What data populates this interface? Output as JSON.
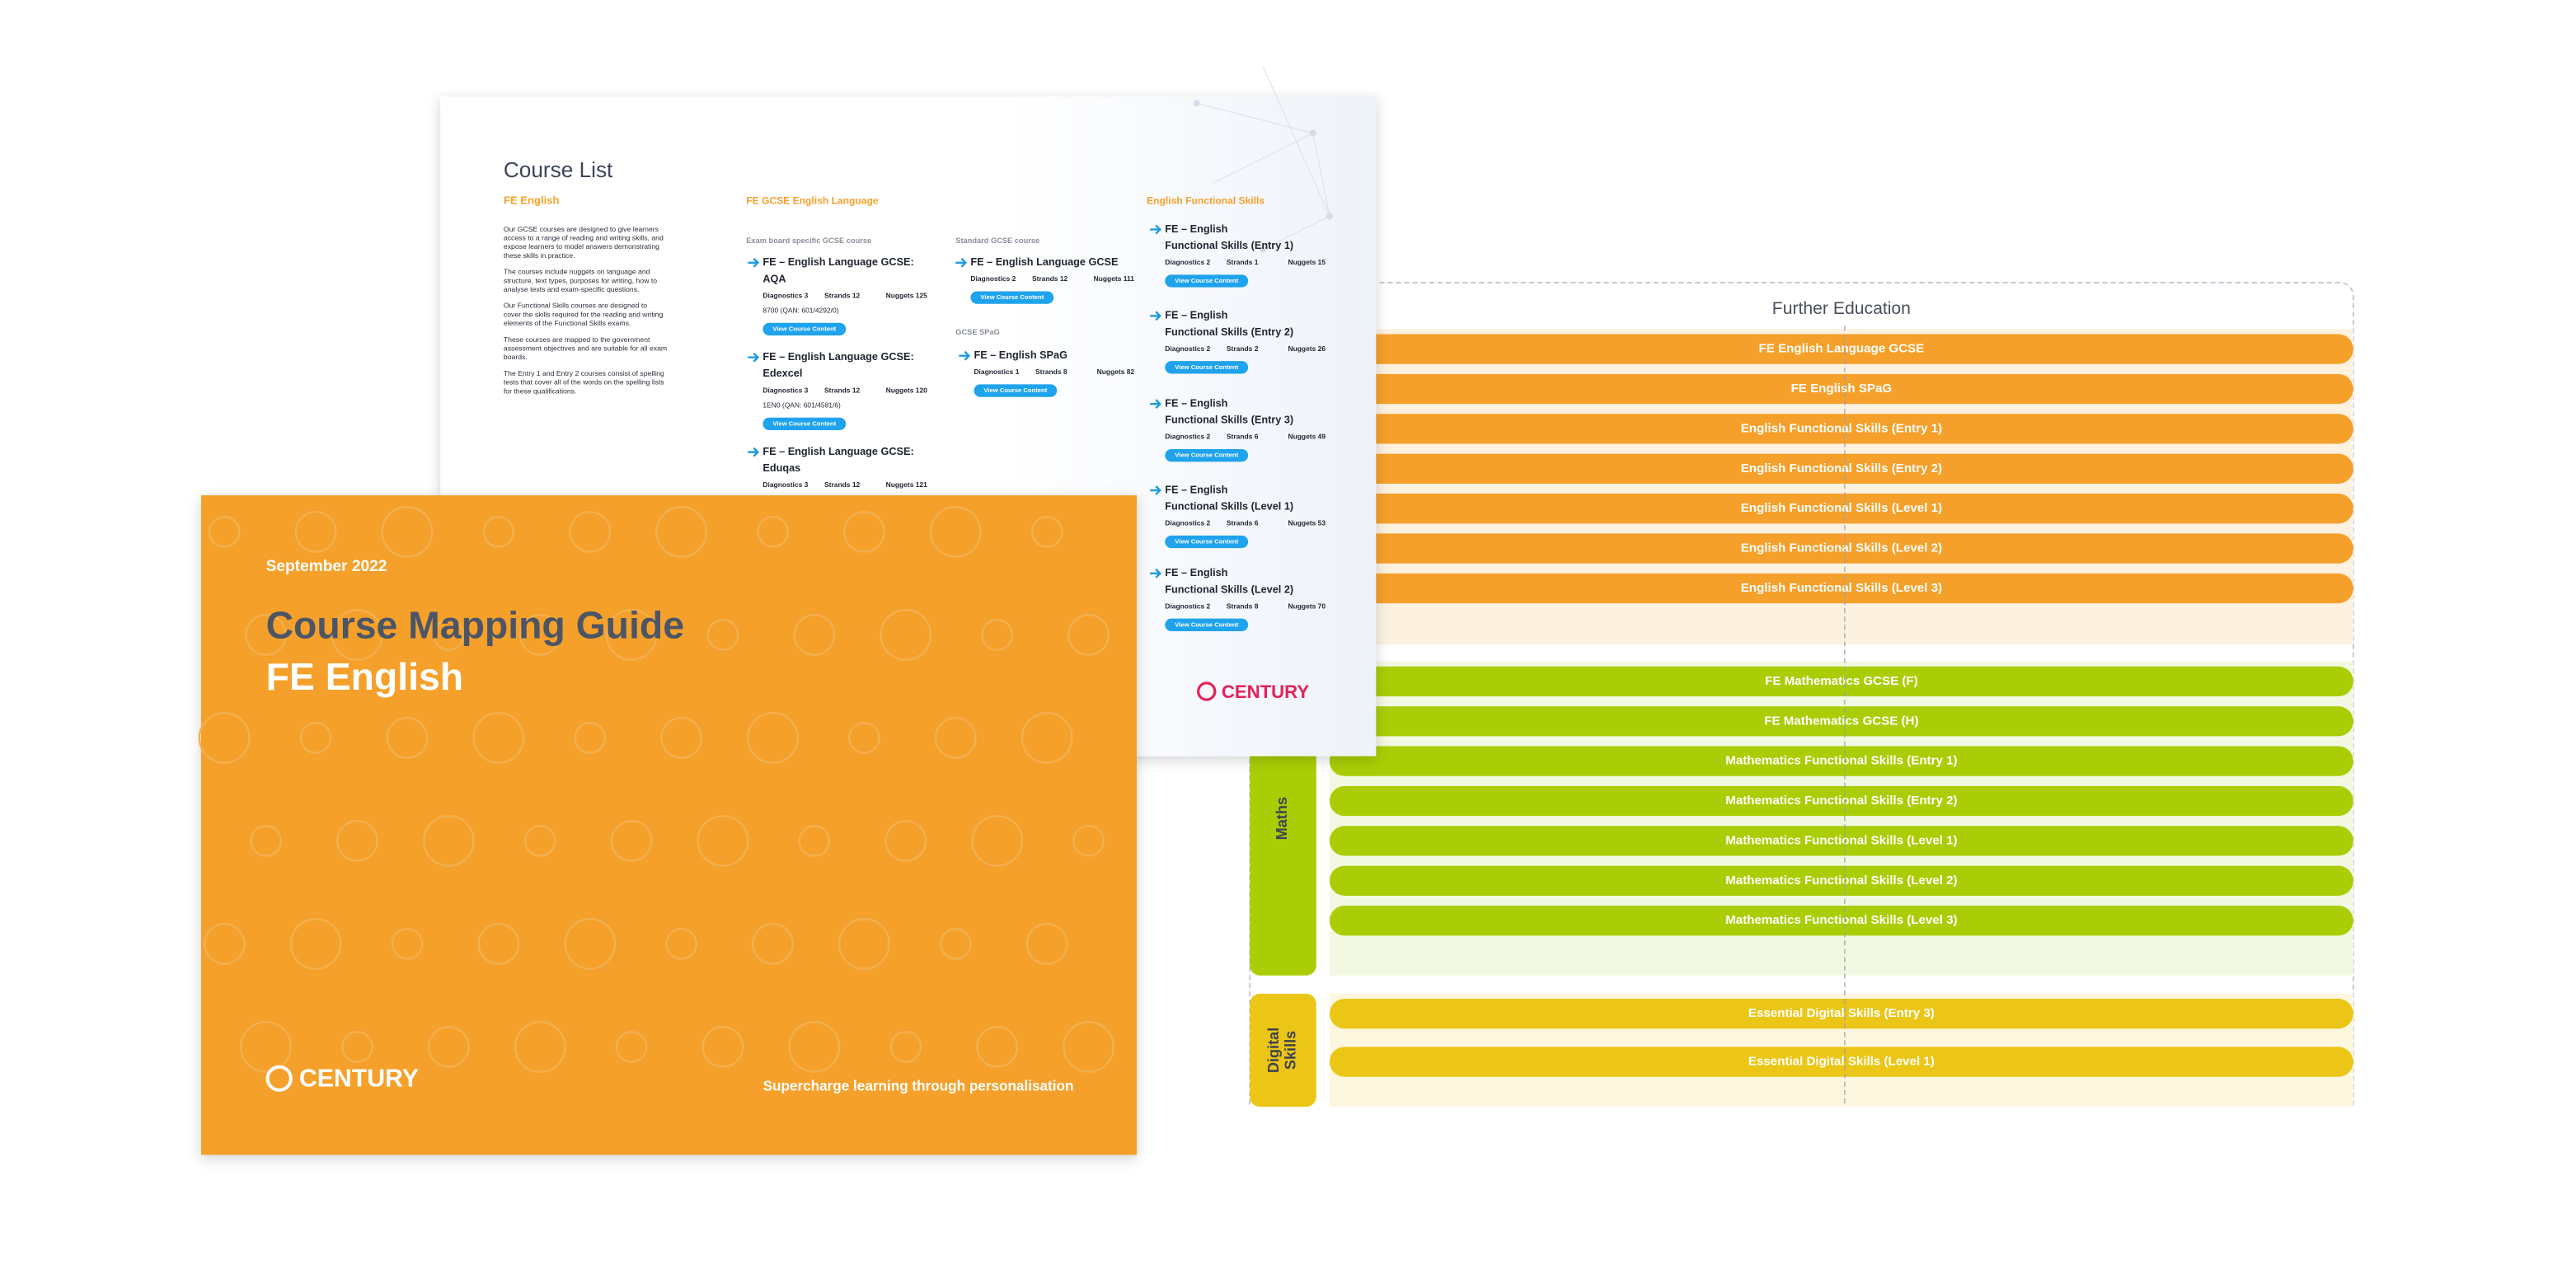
{
  "mapping": {
    "header": "Further Education",
    "groups": [
      {
        "courses": [
          "FE English Language GCSE",
          "FE English SPaG",
          "English Functional Skills (Entry 1)",
          "English Functional Skills (Entry 2)",
          "English Functional Skills (Level 1)",
          "English Functional Skills (Level 2)",
          "English Functional Skills (Level 3)"
        ]
      },
      {
        "label": [
          "Maths"
        ],
        "courses": [
          "FE Mathematics GCSE (F)",
          "FE Mathematics GCSE (H)",
          "Mathematics Functional Skills (Entry 1)",
          "Mathematics Functional Skills (Entry 2)",
          "Mathematics Functional Skills (Level 1)",
          "Mathematics Functional Skills (Level 2)",
          "Mathematics Functional Skills (Level 3)"
        ]
      },
      {
        "label": [
          "Digital",
          "Skills"
        ],
        "courses": [
          "Essential Digital Skills (Entry 3)",
          "Essential Digital Skills (Level 1)"
        ]
      }
    ]
  },
  "course_list": {
    "title": "Course List",
    "section": "FE English",
    "paragraphs": [
      [
        "Our GCSE courses are designed to give learners",
        "access to a range of reading and writing skills, and",
        "expose learners to model answers demonstrating",
        "these skills in practice."
      ],
      [
        "The courses include nuggets on language and",
        "structure, text types, purposes for writing, how to",
        "analyse texts and exam-specific questions."
      ],
      [
        "Our Functional Skills courses are designed to",
        "cover the skills required for the reading and writing",
        "elements of the Functional Skills exams."
      ],
      [
        "These courses are mapped to the government",
        "assessment objectives and are suitable for all exam",
        "boards."
      ],
      [
        "The Entry 1 and Entry 2 courses consist of spelling",
        "tests that cover all of the words on the spelling lists",
        "for these qualifications."
      ]
    ],
    "gcse": {
      "heading": "FE GCSE English Language",
      "label": "Exam board specific GCSE course",
      "courses": [
        {
          "title": [
            "FE – English Language GCSE:",
            "AQA"
          ],
          "stats": [
            "Diagnostics 3",
            "Strands 12",
            "Nuggets 125"
          ],
          "code": "8700 (QAN: 601/4292/0)",
          "button": "View Course Content"
        },
        {
          "title": [
            "FE – English Language GCSE:",
            "Edexcel"
          ],
          "stats": [
            "Diagnostics 3",
            "Strands 12",
            "Nuggets 120"
          ],
          "code": "1EN0 (QAN: 601/4581/6)",
          "button": "View Course Content"
        },
        {
          "title": [
            "FE – English Language GCSE:",
            "Eduqas"
          ],
          "stats": [
            "Diagnostics 3",
            "Strands 12",
            "Nuggets 121"
          ]
        }
      ]
    },
    "standard": {
      "label": "Standard GCSE course",
      "course": {
        "title": [
          "FE – English Language GCSE"
        ],
        "stats": [
          "Diagnostics 2",
          "Strands 12",
          "Nuggets 111"
        ],
        "button": "View Course Content"
      }
    },
    "spag": {
      "label": "GCSE SPaG",
      "course": {
        "title": [
          "FE – English SPaG"
        ],
        "stats": [
          "Diagnostics 1",
          "Strands 8",
          "Nuggets 82"
        ],
        "button": "View Course Content"
      }
    },
    "functional": {
      "heading": "English Functional Skills",
      "courses": [
        {
          "title": [
            "FE – English",
            "Functional Skills (Entry 1)"
          ],
          "stats": [
            "Diagnostics 2",
            "Strands 1",
            "Nuggets 15"
          ],
          "button": "View Course Content"
        },
        {
          "title": [
            "FE – English",
            "Functional Skills (Entry 2)"
          ],
          "stats": [
            "Diagnostics 2",
            "Strands 2",
            "Nuggets 26"
          ],
          "button": "View Course Content"
        },
        {
          "title": [
            "FE – English",
            "Functional Skills (Entry 3)"
          ],
          "stats": [
            "Diagnostics 2",
            "Strands 6",
            "Nuggets 49"
          ],
          "button": "View Course Content"
        },
        {
          "title": [
            "FE – English",
            "Functional Skills (Level 1)"
          ],
          "stats": [
            "Diagnostics 2",
            "Strands 6",
            "Nuggets 53"
          ],
          "button": "View Course Content"
        },
        {
          "title": [
            "FE – English",
            "Functional Skills (Level 2)"
          ],
          "stats": [
            "Diagnostics 2",
            "Strands 8",
            "Nuggets 70"
          ],
          "button": "View Course Content"
        }
      ]
    },
    "logo": "CENTURY"
  },
  "cover": {
    "date": "September 2022",
    "title": "Course Mapping Guide",
    "subtitle": "FE English",
    "logo": "CENTURY",
    "tagline": "Supercharge learning through personalisation"
  }
}
